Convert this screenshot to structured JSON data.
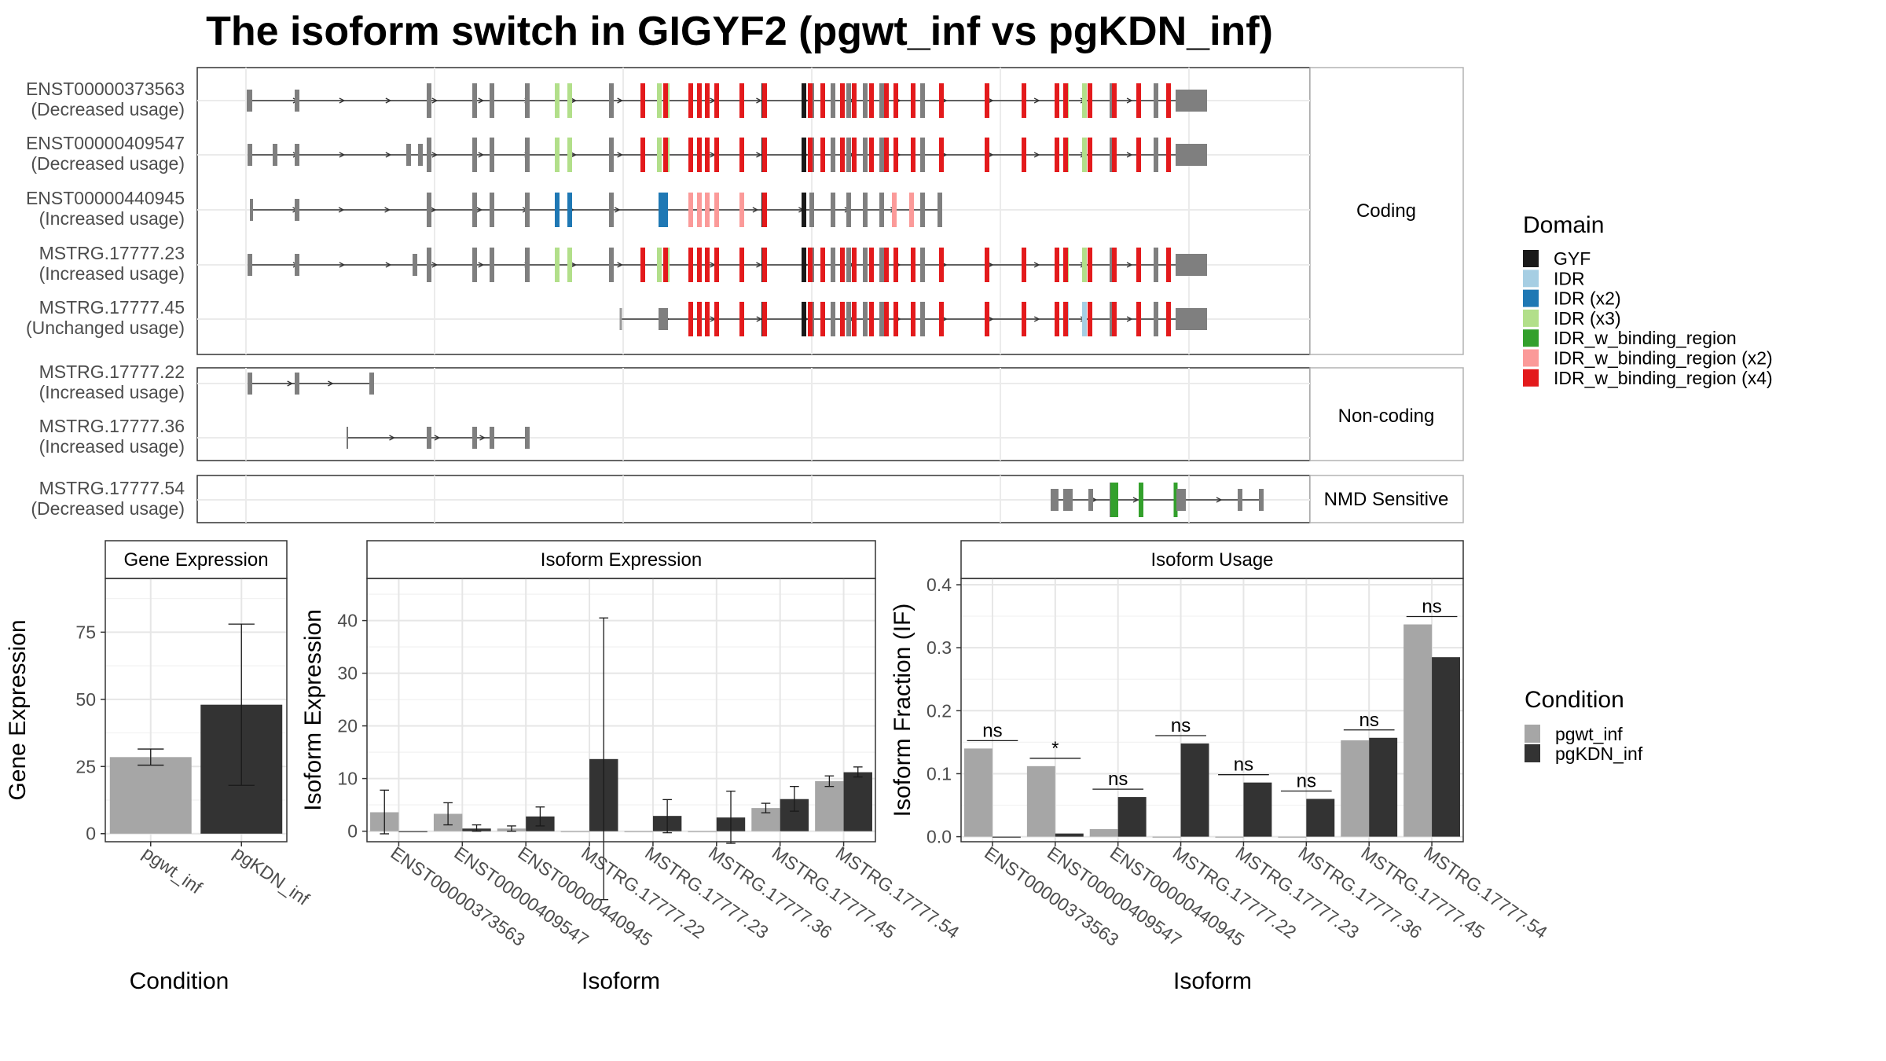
{
  "title": "The isoform switch in GIGYF2 (pgwt_inf vs pgKDN_inf)",
  "structure": {
    "facets": [
      "Coding",
      "Non-coding",
      "NMD Sensitive"
    ],
    "transcripts": [
      {
        "id": "ENST00000373563",
        "usage": "(Decreased usage)",
        "facet": "Coding"
      },
      {
        "id": "ENST00000409547",
        "usage": "(Decreased usage)",
        "facet": "Coding"
      },
      {
        "id": "ENST00000440945",
        "usage": "(Increased usage)",
        "facet": "Coding"
      },
      {
        "id": "MSTRG.17777.23",
        "usage": "(Increased usage)",
        "facet": "Coding"
      },
      {
        "id": "MSTRG.17777.45",
        "usage": "(Unchanged usage)",
        "facet": "Coding"
      },
      {
        "id": "MSTRG.17777.22",
        "usage": "(Increased usage)",
        "facet": "Non-coding"
      },
      {
        "id": "MSTRG.17777.36",
        "usage": "(Increased usage)",
        "facet": "Non-coding"
      },
      {
        "id": "MSTRG.17777.54",
        "usage": "(Decreased usage)",
        "facet": "NMD Sensitive"
      }
    ]
  },
  "domain_legend": {
    "title": "Domain",
    "items": [
      {
        "label": "GYF",
        "color": "#1a1a1a"
      },
      {
        "label": "IDR",
        "color": "#a6cee3"
      },
      {
        "label": "IDR (x2)",
        "color": "#1f78b4"
      },
      {
        "label": "IDR (x3)",
        "color": "#b2df8a"
      },
      {
        "label": "IDR_w_binding_region",
        "color": "#33a02c"
      },
      {
        "label": "IDR_w_binding_region (x2)",
        "color": "#fb9a99"
      },
      {
        "label": "IDR_w_binding_region (x4)",
        "color": "#e31a1c"
      }
    ]
  },
  "condition_legend": {
    "title": "Condition",
    "items": [
      {
        "label": "pgwt_inf",
        "color": "#a6a6a6"
      },
      {
        "label": "pgKDN_inf",
        "color": "#333333"
      }
    ]
  },
  "chart_data": [
    {
      "type": "bar",
      "title": "Gene Expression",
      "xlabel": "Condition",
      "ylabel": "Gene Expression",
      "categories": [
        "pgwt_inf",
        "pgKDN_inf"
      ],
      "values": [
        28.5,
        48
      ],
      "error_low": [
        25.5,
        18
      ],
      "error_high": [
        31.5,
        78
      ],
      "ylim": [
        -3,
        95
      ],
      "yticks": [
        0,
        25,
        50,
        75
      ]
    },
    {
      "type": "bar",
      "title": "Isoform Expression",
      "xlabel": "Isoform",
      "ylabel": "Isoform Expression",
      "categories": [
        "ENST00000373563",
        "ENST00000409547",
        "ENST00000440945",
        "MSTRG.17777.22",
        "MSTRG.17777.23",
        "MSTRG.17777.36",
        "MSTRG.17777.45",
        "MSTRG.17777.54"
      ],
      "series": [
        {
          "name": "pgwt_inf",
          "values": [
            3.6,
            3.3,
            0.5,
            0,
            0,
            0,
            4.4,
            9.5
          ],
          "error_low": [
            -0.5,
            1.2,
            0,
            0,
            0,
            0,
            3.5,
            8.5
          ],
          "error_high": [
            7.8,
            5.4,
            1,
            0,
            0,
            0,
            5.3,
            10.5
          ]
        },
        {
          "name": "pgKDN_inf",
          "values": [
            0,
            0.5,
            2.8,
            13.7,
            2.9,
            2.6,
            6.1,
            11.2
          ],
          "error_low": [
            0,
            0,
            1,
            -13,
            -0.3,
            -2.3,
            3.8,
            10.3
          ],
          "error_high": [
            0,
            1.2,
            4.6,
            40.5,
            6,
            7.6,
            8.5,
            12.2
          ]
        }
      ],
      "ylim": [
        -2,
        48
      ],
      "yticks": [
        0,
        10,
        20,
        30,
        40
      ]
    },
    {
      "type": "bar",
      "title": "Isoform Usage",
      "xlabel": "Isoform",
      "ylabel": "Isoform Fraction (IF)",
      "categories": [
        "ENST00000373563",
        "ENST00000409547",
        "ENST00000440945",
        "MSTRG.17777.22",
        "MSTRG.17777.23",
        "MSTRG.17777.36",
        "MSTRG.17777.45",
        "MSTRG.17777.54"
      ],
      "series": [
        {
          "name": "pgwt_inf",
          "values": [
            0.14,
            0.112,
            0.012,
            0,
            0,
            0,
            0.153,
            0.337
          ]
        },
        {
          "name": "pgKDN_inf",
          "values": [
            0,
            0.005,
            0.063,
            0.148,
            0.086,
            0.06,
            0.157,
            0.285
          ]
        }
      ],
      "significance": [
        "ns",
        "*",
        "ns",
        "ns",
        "ns",
        "ns",
        "ns",
        "ns"
      ],
      "ylim": [
        -0.008,
        0.41
      ],
      "yticks": [
        0.0,
        0.1,
        0.2,
        0.3,
        0.4
      ],
      "ytick_labels": [
        "0.0",
        "0.1",
        "0.2",
        "0.3",
        "0.4"
      ]
    }
  ]
}
